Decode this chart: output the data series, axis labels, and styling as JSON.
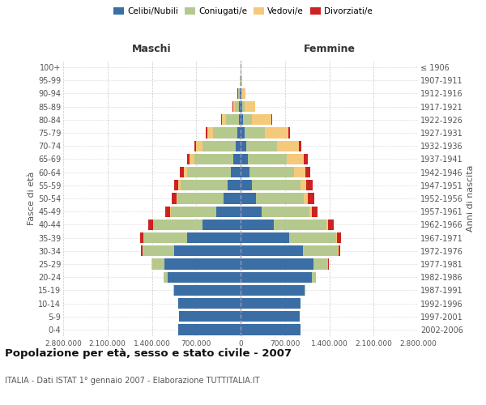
{
  "age_groups": [
    "0-4",
    "5-9",
    "10-14",
    "15-19",
    "20-24",
    "25-29",
    "30-34",
    "35-39",
    "40-44",
    "45-49",
    "50-54",
    "55-59",
    "60-64",
    "65-69",
    "70-74",
    "75-79",
    "80-84",
    "85-89",
    "90-94",
    "95-99",
    "100+"
  ],
  "birth_years": [
    "2002-2006",
    "1997-2001",
    "1992-1996",
    "1987-1991",
    "1982-1986",
    "1977-1981",
    "1972-1976",
    "1967-1971",
    "1962-1966",
    "1957-1961",
    "1952-1956",
    "1947-1951",
    "1942-1946",
    "1937-1941",
    "1932-1936",
    "1927-1931",
    "1922-1926",
    "1917-1921",
    "1912-1916",
    "1907-1911",
    "≤ 1906"
  ],
  "male": {
    "celibi": [
      990000,
      970000,
      980000,
      1050000,
      1150000,
      1200000,
      1050000,
      850000,
      600000,
      380000,
      270000,
      200000,
      150000,
      110000,
      80000,
      50000,
      30000,
      20000,
      10000,
      5000,
      2000
    ],
    "coniugati": [
      100,
      500,
      2000,
      15000,
      60000,
      200000,
      500000,
      680000,
      780000,
      720000,
      730000,
      750000,
      700000,
      620000,
      520000,
      380000,
      200000,
      70000,
      25000,
      8000,
      3000
    ],
    "vedovi": [
      10,
      20,
      50,
      100,
      200,
      500,
      1500,
      3000,
      5000,
      8000,
      15000,
      30000,
      50000,
      70000,
      100000,
      100000,
      70000,
      30000,
      8000,
      2000,
      500
    ],
    "divorziati": [
      20,
      50,
      100,
      500,
      1500,
      5000,
      20000,
      50000,
      75000,
      75000,
      70000,
      65000,
      55000,
      40000,
      30000,
      20000,
      10000,
      5000,
      2000,
      500,
      100
    ]
  },
  "female": {
    "nubili": [
      950000,
      930000,
      940000,
      1010000,
      1120000,
      1150000,
      980000,
      770000,
      530000,
      330000,
      240000,
      180000,
      140000,
      110000,
      90000,
      60000,
      35000,
      20000,
      10000,
      5000,
      2000
    ],
    "coniugate": [
      100,
      500,
      2000,
      17000,
      70000,
      230000,
      560000,
      740000,
      830000,
      760000,
      760000,
      760000,
      700000,
      620000,
      490000,
      320000,
      150000,
      50000,
      15000,
      5000,
      2000
    ],
    "vedove": [
      10,
      20,
      50,
      150,
      500,
      1500,
      5000,
      10000,
      18000,
      30000,
      55000,
      100000,
      180000,
      270000,
      340000,
      380000,
      300000,
      160000,
      55000,
      15000,
      5000
    ],
    "divorziate": [
      20,
      50,
      100,
      500,
      1800,
      6000,
      25000,
      60000,
      90000,
      100000,
      105000,
      95000,
      75000,
      55000,
      35000,
      20000,
      10000,
      5000,
      2000,
      500,
      100
    ]
  },
  "colors": {
    "celibi": "#3a6ea5",
    "coniugati": "#b5c98e",
    "vedovi": "#f5c97a",
    "divorziati": "#cc2222"
  },
  "xlim": 2800000,
  "title": "Popolazione per età, sesso e stato civile - 2007",
  "subtitle": "ITALIA - Dati ISTAT 1° gennaio 2007 - Elaborazione TUTTITALIA.IT",
  "ylabel_left": "Fasce di età",
  "ylabel_right": "Anni di nascita",
  "xlabel_maschi": "Maschi",
  "xlabel_femmine": "Femmine",
  "legend_labels": [
    "Celibi/Nubili",
    "Coniugati/e",
    "Vedovi/e",
    "Divorziati/e"
  ],
  "xtick_labels": [
    "2.800.000",
    "2.100.000",
    "1.400.000",
    "700.000",
    "0",
    "700.000",
    "1.400.000",
    "2.100.000",
    "2.800.000"
  ],
  "background_color": "#ffffff",
  "grid_color": "#bbbbbb"
}
